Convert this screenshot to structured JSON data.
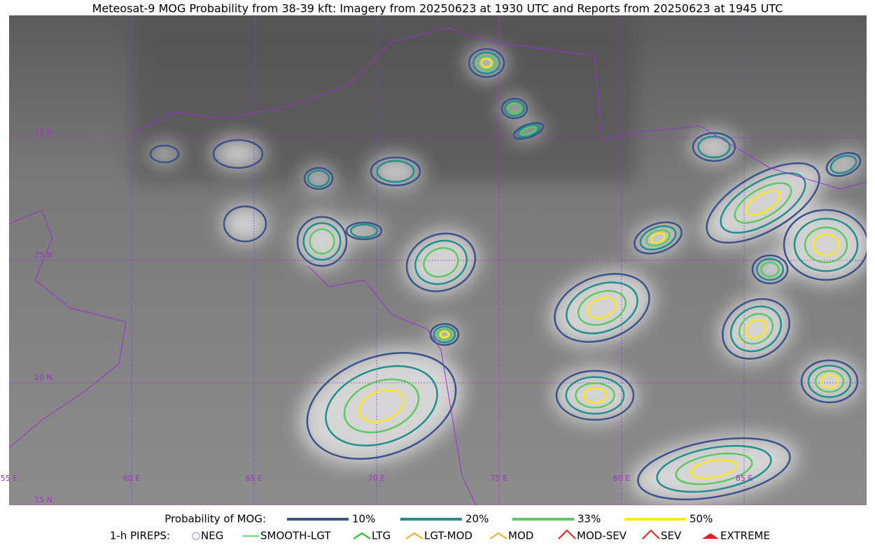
{
  "title": "Meteosat-9 MOG Probability from 38-39 kft: Imagery from 20250623 at 1930 UTC and Reports from 20250623 at 1945 UTC",
  "map": {
    "lat_labels": [
      "30 N",
      "25 N",
      "20 N",
      "15 N"
    ],
    "lon_labels": [
      "55 E",
      "60 E",
      "65 E",
      "70 E",
      "75 E",
      "80 E",
      "85 E"
    ]
  },
  "legend": {
    "probability": {
      "label": "Probability of MOG:",
      "items": [
        "10%",
        "20%",
        "33%",
        "50%"
      ]
    },
    "pireps": {
      "label": "1-h PIREPS:",
      "items": [
        "NEG",
        "SMOOTH-LGT",
        "LTG",
        "LGT-MOD",
        "MOD",
        "MOD-SEV",
        "SEV",
        "EXTREME"
      ]
    }
  }
}
